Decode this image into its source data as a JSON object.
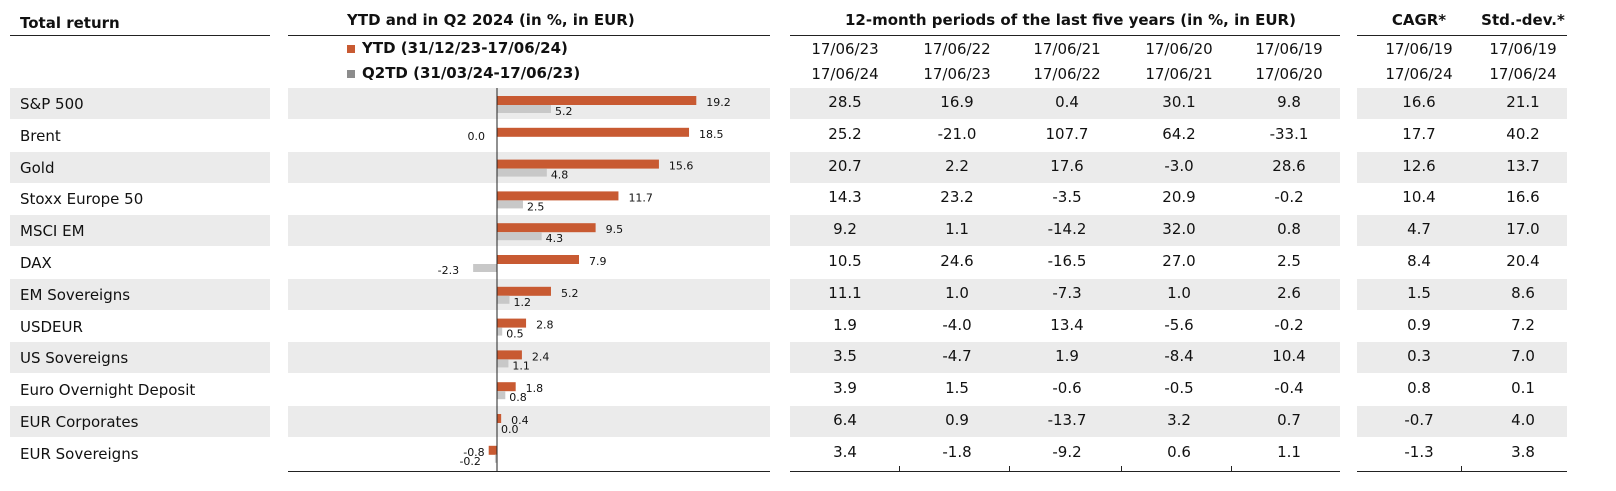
{
  "headers": {
    "total_return": "Total return",
    "chart_title": "YTD and in Q2 2024 (in %, in EUR)",
    "periods_title": "12-month periods of the last five years (in %, in EUR)",
    "cagr": "CAGR*",
    "stddev": "Std.-dev.*"
  },
  "legend": {
    "ytd": "YTD (31/12/23-17/06/24)",
    "q2td": "Q2TD (31/03/24-17/06/23)"
  },
  "colors": {
    "ytd": "#c85a32",
    "q2td": "#c8c8c8",
    "band": "#ebebeb"
  },
  "period_dates": [
    {
      "from": "17/06/23",
      "to": "17/06/24"
    },
    {
      "from": "17/06/22",
      "to": "17/06/23"
    },
    {
      "from": "17/06/21",
      "to": "17/06/22"
    },
    {
      "from": "17/06/20",
      "to": "17/06/21"
    },
    {
      "from": "17/06/19",
      "to": "17/06/20"
    }
  ],
  "cagr_dates": {
    "from": "17/06/19",
    "to": "17/06/24"
  },
  "stddev_dates": {
    "from": "17/06/19",
    "to": "17/06/24"
  },
  "rows": [
    {
      "label": "S&P 500",
      "periods": [
        "28.5",
        "16.9",
        "0.4",
        "30.1",
        "9.8"
      ],
      "cagr": "16.6",
      "std": "21.1"
    },
    {
      "label": "Brent",
      "periods": [
        "25.2",
        "-21.0",
        "107.7",
        "64.2",
        "-33.1"
      ],
      "cagr": "17.7",
      "std": "40.2"
    },
    {
      "label": "Gold",
      "periods": [
        "20.7",
        "2.2",
        "17.6",
        "-3.0",
        "28.6"
      ],
      "cagr": "12.6",
      "std": "13.7"
    },
    {
      "label": "Stoxx Europe 50",
      "periods": [
        "14.3",
        "23.2",
        "-3.5",
        "20.9",
        "-0.2"
      ],
      "cagr": "10.4",
      "std": "16.6"
    },
    {
      "label": "MSCI EM",
      "periods": [
        "9.2",
        "1.1",
        "-14.2",
        "32.0",
        "0.8"
      ],
      "cagr": "4.7",
      "std": "17.0"
    },
    {
      "label": "DAX",
      "periods": [
        "10.5",
        "24.6",
        "-16.5",
        "27.0",
        "2.5"
      ],
      "cagr": "8.4",
      "std": "20.4"
    },
    {
      "label": "EM Sovereigns",
      "periods": [
        "11.1",
        "1.0",
        "-7.3",
        "1.0",
        "2.6"
      ],
      "cagr": "1.5",
      "std": "8.6"
    },
    {
      "label": "USDEUR",
      "periods": [
        "1.9",
        "-4.0",
        "13.4",
        "-5.6",
        "-0.2"
      ],
      "cagr": "0.9",
      "std": "7.2"
    },
    {
      "label": "US Sovereigns",
      "periods": [
        "3.5",
        "-4.7",
        "1.9",
        "-8.4",
        "10.4"
      ],
      "cagr": "0.3",
      "std": "7.0"
    },
    {
      "label": "Euro Overnight Deposit",
      "periods": [
        "3.9",
        "1.5",
        "-0.6",
        "-0.5",
        "-0.4"
      ],
      "cagr": "0.8",
      "std": "0.1"
    },
    {
      "label": "EUR Corporates",
      "periods": [
        "6.4",
        "0.9",
        "-13.7",
        "3.2",
        "0.7"
      ],
      "cagr": "-0.7",
      "std": "4.0"
    },
    {
      "label": "EUR Sovereigns",
      "periods": [
        "3.4",
        "-1.8",
        "-9.2",
        "0.6",
        "1.1"
      ],
      "cagr": "-1.3",
      "std": "3.8"
    }
  ],
  "chart_data": {
    "type": "bar",
    "orientation": "horizontal",
    "title": "YTD and in Q2 2024 (in %, in EUR)",
    "categories": [
      "S&P 500",
      "Brent",
      "Gold",
      "Stoxx Europe 50",
      "MSCI EM",
      "DAX",
      "EM Sovereigns",
      "USDEUR",
      "US Sovereigns",
      "Euro Overnight Deposit",
      "EUR Corporates",
      "EUR Sovereigns"
    ],
    "series": [
      {
        "name": "YTD (31/12/23-17/06/24)",
        "values": [
          19.2,
          18.5,
          15.6,
          11.7,
          9.5,
          7.9,
          5.2,
          2.8,
          2.4,
          1.8,
          0.4,
          -0.8
        ],
        "labels": [
          "19.2",
          "18.5",
          "15.6",
          "11.7",
          "9.5",
          "7.9",
          "5.2",
          "2.8",
          "2.4",
          "1.8",
          "0.4",
          "-0.8"
        ]
      },
      {
        "name": "Q2TD (31/03/24-17/06/23)",
        "values": [
          5.2,
          0.0,
          4.8,
          2.5,
          4.3,
          -2.3,
          1.2,
          0.5,
          1.1,
          0.8,
          0.0,
          -0.2
        ],
        "labels": [
          "5.2",
          "0.0",
          "4.8",
          "2.5",
          "4.3",
          "-2.3",
          "1.2",
          "0.5",
          "1.1",
          "0.8",
          "0.0",
          "-0.2"
        ]
      }
    ],
    "xlim": [
      -10,
      24
    ],
    "legend": "top"
  }
}
